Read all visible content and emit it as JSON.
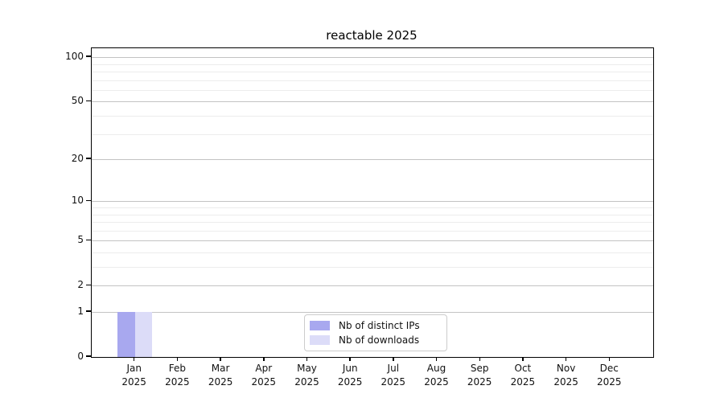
{
  "chart_data": {
    "type": "bar",
    "title": "reactable 2025",
    "categories": [
      "Jan 2025",
      "Feb 2025",
      "Mar 2025",
      "Apr 2025",
      "May 2025",
      "Jun 2025",
      "Jul 2025",
      "Aug 2025",
      "Sep 2025",
      "Oct 2025",
      "Nov 2025",
      "Dec 2025"
    ],
    "series": [
      {
        "name": "Nb of distinct IPs",
        "color": "#a8a8ef",
        "values": [
          1,
          0,
          0,
          0,
          0,
          0,
          0,
          0,
          0,
          0,
          0,
          0
        ]
      },
      {
        "name": "Nb of downloads",
        "color": "#dcdcf8",
        "values": [
          1,
          0,
          0,
          0,
          0,
          0,
          0,
          0,
          0,
          0,
          0,
          0
        ]
      }
    ],
    "xlabel": "",
    "ylabel": "",
    "y_scale": "log1p",
    "ylim": [
      0,
      115
    ],
    "y_ticks": [
      0,
      1,
      2,
      5,
      10,
      20,
      50,
      100
    ],
    "y_minor_gridlines": [
      3,
      4,
      6,
      7,
      8,
      9,
      30,
      40,
      60,
      70,
      80,
      90
    ],
    "grid": true,
    "legend": {
      "position": "bottom-center",
      "entries": [
        "Nb of distinct IPs",
        "Nb of downloads"
      ]
    },
    "colors": {
      "major_grid": "#c3c3c3",
      "minor_grid": "#ececec",
      "axis": "#000000",
      "background": "#ffffff"
    }
  }
}
